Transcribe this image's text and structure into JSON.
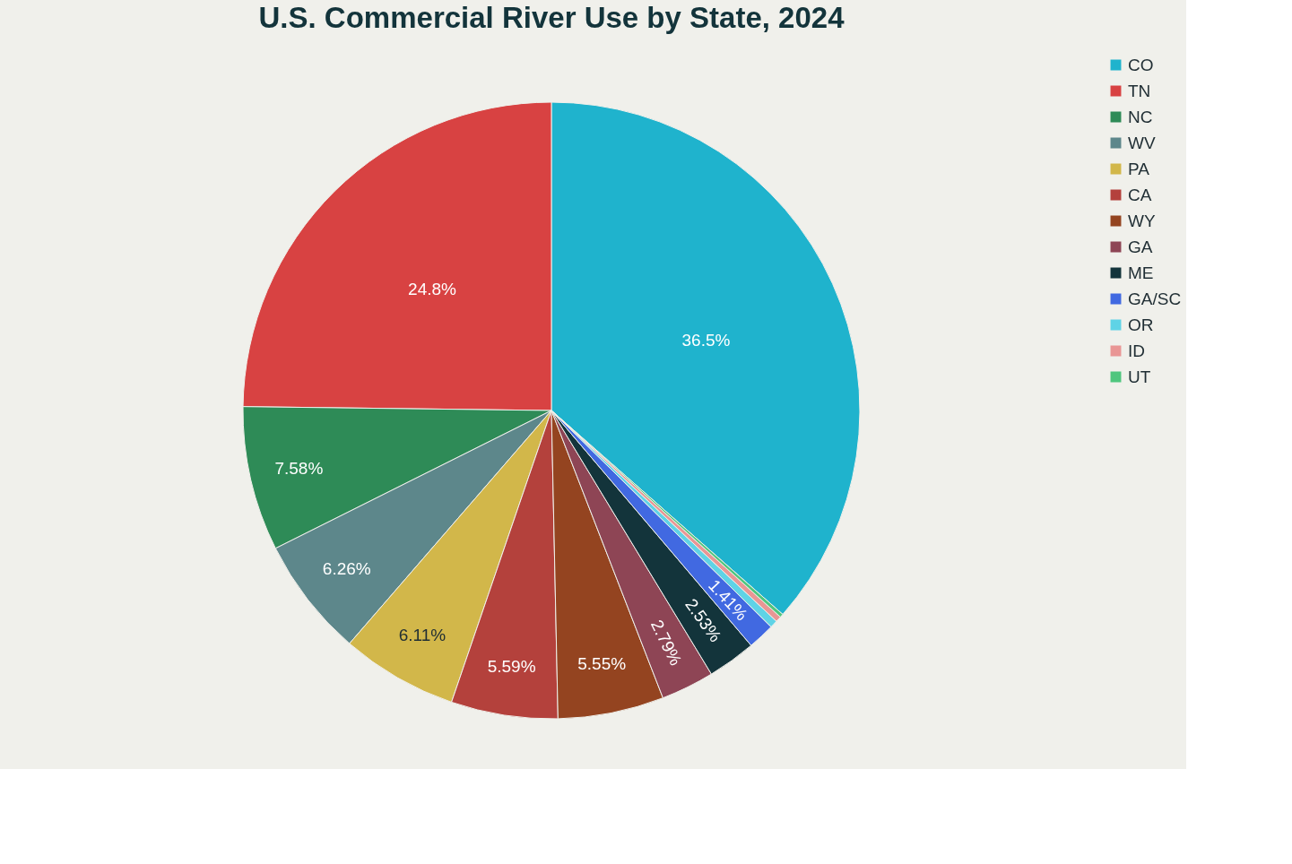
{
  "chart_data": {
    "type": "pie",
    "title": "U.S. Commercial River Use by State, 2024",
    "categories": [
      "CO",
      "TN",
      "NC",
      "WV",
      "PA",
      "CA",
      "WY",
      "GA",
      "ME",
      "GA/SC",
      "OR",
      "ID",
      "UT"
    ],
    "values": [
      36.5,
      24.8,
      7.58,
      6.26,
      6.11,
      5.59,
      5.55,
      2.79,
      2.53,
      1.41,
      0.4,
      0.3,
      0.18
    ],
    "colors": [
      "#1fb3cd",
      "#d84242",
      "#2e8b57",
      "#5d878b",
      "#d2b74a",
      "#b4413c",
      "#944420",
      "#8e4555",
      "#13343b",
      "#4169e1",
      "#5fd3e6",
      "#e99695",
      "#4fc67e"
    ],
    "value_labels": [
      "36.5%",
      "24.8%",
      "7.58%",
      "6.26%",
      "6.11%",
      "5.59%",
      "5.55%",
      "2.79%",
      "2.53%",
      "1.41%",
      null,
      null,
      null
    ],
    "legend": "top right"
  }
}
